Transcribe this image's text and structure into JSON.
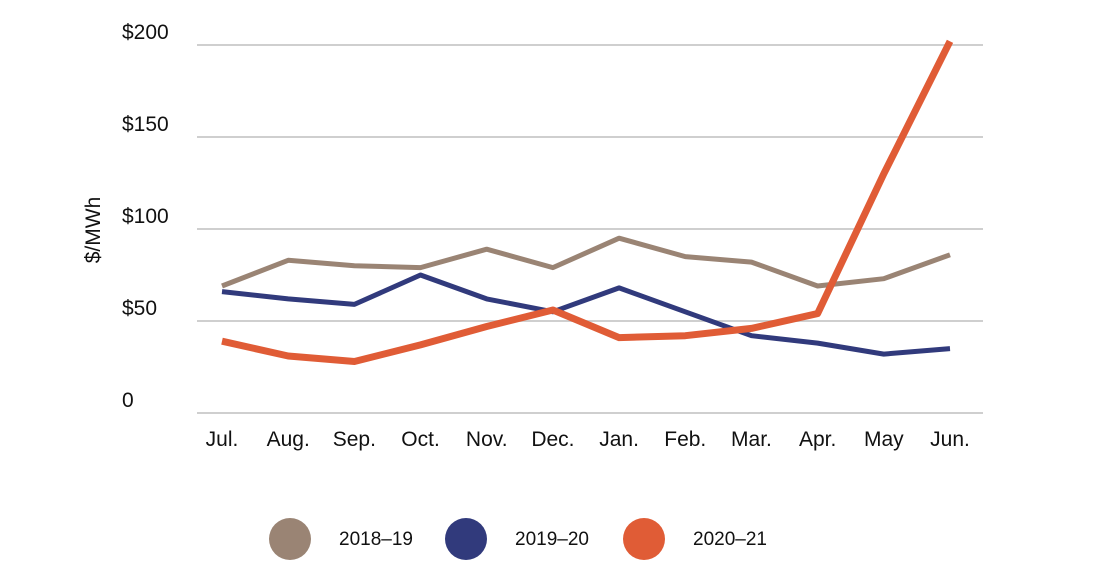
{
  "chart_data": {
    "type": "line",
    "ylabel": "$/MWh",
    "categories": [
      "Jul.",
      "Aug.",
      "Sep.",
      "Oct.",
      "Nov.",
      "Dec.",
      "Jan.",
      "Feb.",
      "Mar.",
      "Apr.",
      "May",
      "Jun."
    ],
    "y_ticks": [
      {
        "value": 0,
        "label": "0"
      },
      {
        "value": 50,
        "label": "$50"
      },
      {
        "value": 100,
        "label": "$100"
      },
      {
        "value": 150,
        "label": "$150"
      },
      {
        "value": 200,
        "label": "$200"
      }
    ],
    "ylim": [
      0,
      200
    ],
    "grid": true,
    "legend_position": "bottom",
    "series": [
      {
        "name": "2018–19",
        "color": "#9a8474",
        "values": [
          69,
          83,
          80,
          79,
          89,
          79,
          95,
          85,
          82,
          69,
          73,
          86
        ]
      },
      {
        "name": "2019–20",
        "color": "#313a7c",
        "values": [
          66,
          62,
          59,
          75,
          62,
          55,
          68,
          55,
          42,
          38,
          32,
          35
        ]
      },
      {
        "name": "2020–21",
        "color": "#e05c36",
        "values": [
          39,
          31,
          28,
          37,
          47,
          56,
          41,
          42,
          46,
          54,
          130,
          202
        ]
      }
    ]
  }
}
